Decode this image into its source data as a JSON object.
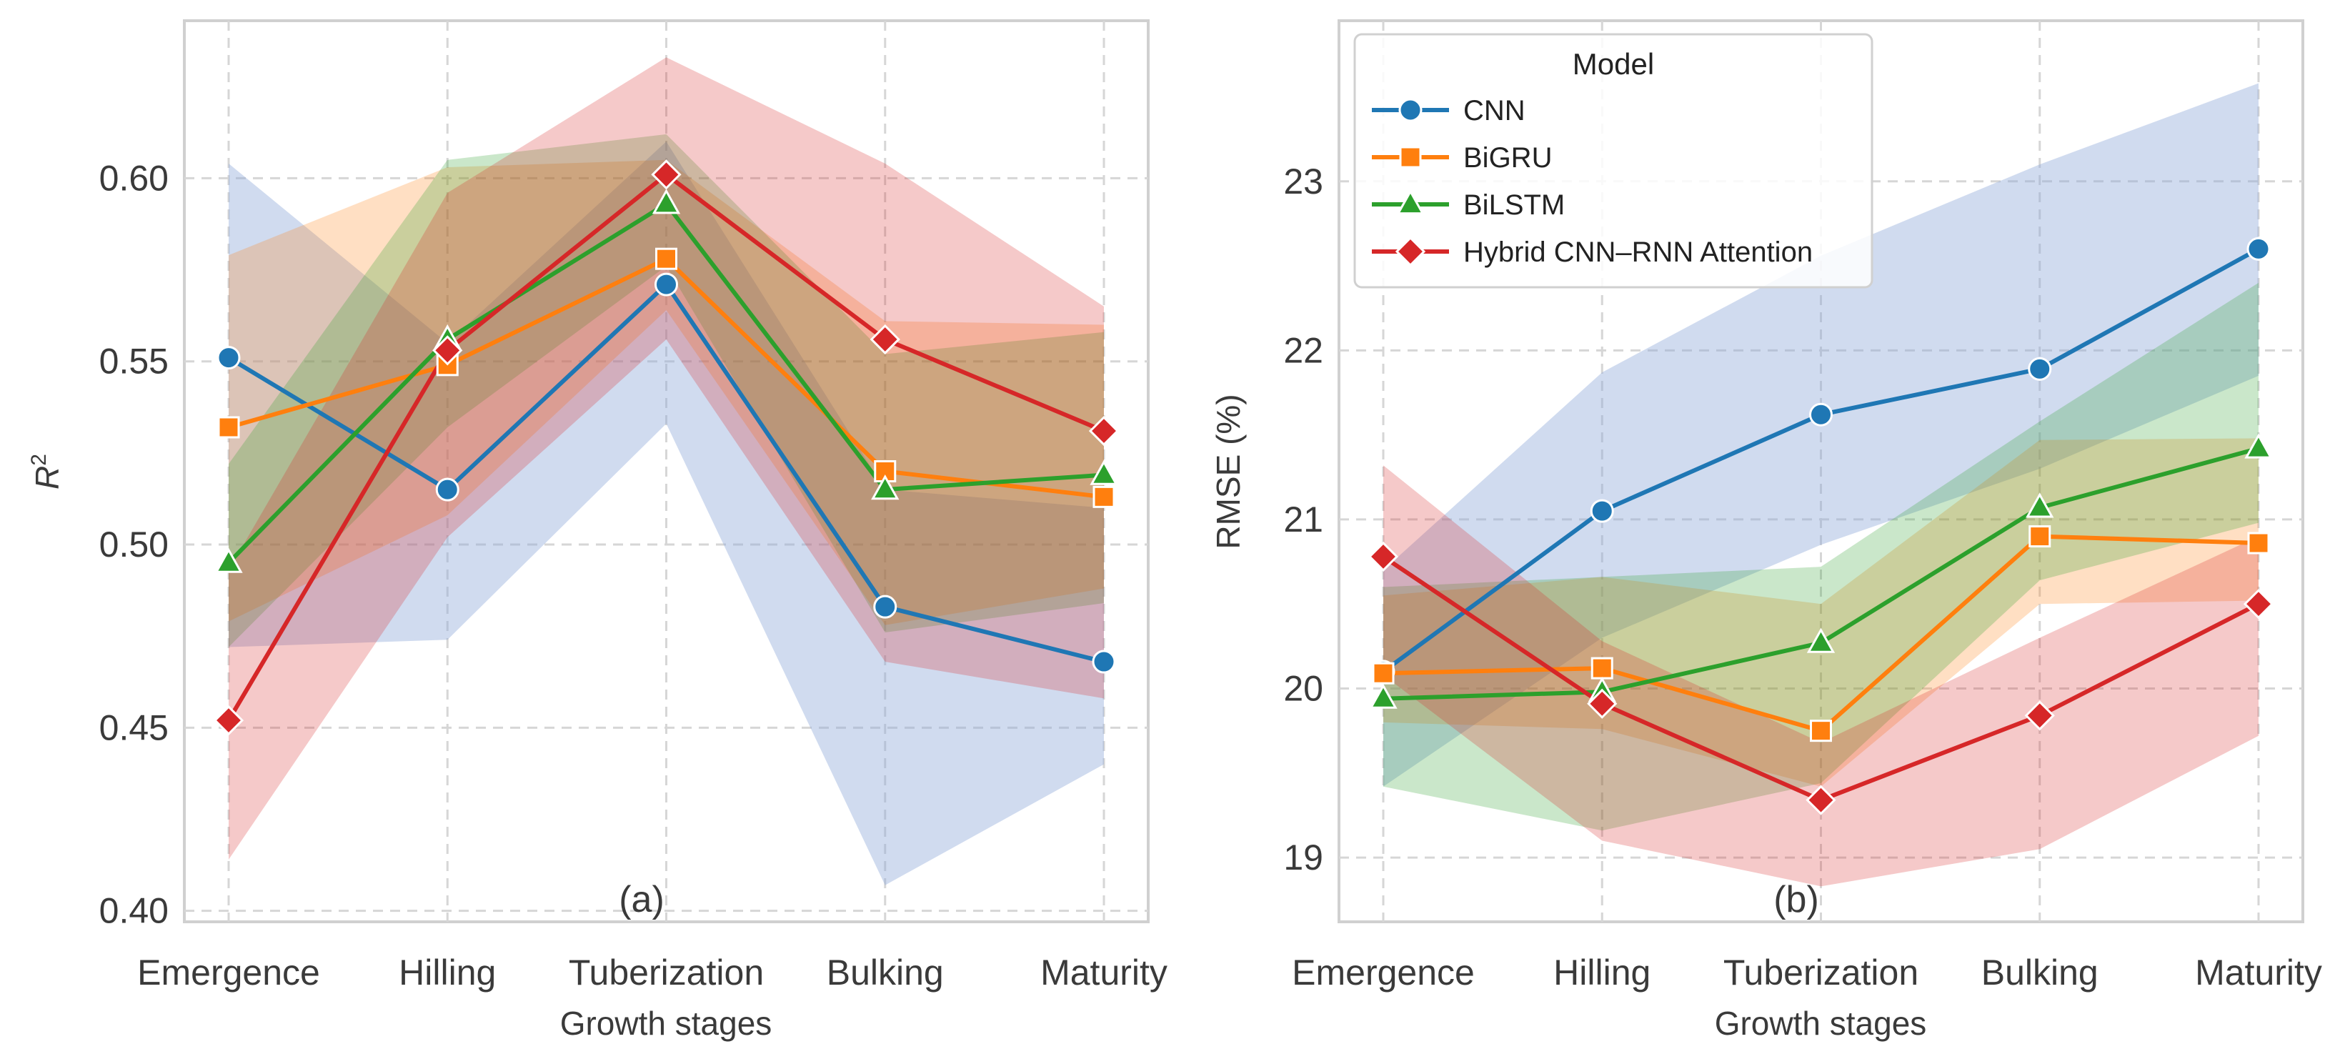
{
  "figure": {
    "legend_title": "Model"
  },
  "series_meta": [
    {
      "name": "CNN",
      "color": "#1f77b4",
      "marker": "circle"
    },
    {
      "name": "BiGRU",
      "color": "#ff7f0e",
      "marker": "square"
    },
    {
      "name": "BiLSTM",
      "color": "#2ca02c",
      "marker": "triangle"
    },
    {
      "name": "Hybrid CNN–RNN Attention",
      "color": "#d62728",
      "marker": "diamond"
    }
  ],
  "chart_data": [
    {
      "type": "line",
      "panel": "(a)",
      "title": "",
      "xlabel": "Growth stages",
      "ylabel": "R²",
      "ylabel_base": "R",
      "ylabel_sup": "2",
      "categories": [
        "Emergence",
        "Hilling",
        "Tuberization",
        "Bulking",
        "Maturity"
      ],
      "ylim": [
        0.397,
        0.643
      ],
      "yticks": [
        0.4,
        0.45,
        0.5,
        0.55,
        0.6
      ],
      "ytick_labels": [
        "0.40",
        "0.45",
        "0.50",
        "0.55",
        "0.60"
      ],
      "grid": true,
      "legend": false,
      "series": [
        {
          "name": "CNN",
          "values": [
            0.551,
            0.515,
            0.571,
            0.483,
            0.468
          ],
          "band_low": [
            0.472,
            0.474,
            0.533,
            0.407,
            0.44
          ],
          "band_high": [
            0.604,
            0.555,
            0.61,
            0.515,
            0.51
          ]
        },
        {
          "name": "BiGRU",
          "values": [
            0.532,
            0.549,
            0.578,
            0.52,
            0.513
          ],
          "band_low": [
            0.479,
            0.508,
            0.564,
            0.478,
            0.488
          ],
          "band_high": [
            0.579,
            0.603,
            0.605,
            0.561,
            0.56
          ]
        },
        {
          "name": "BiLSTM",
          "values": [
            0.495,
            0.556,
            0.593,
            0.515,
            0.519
          ],
          "band_low": [
            0.472,
            0.532,
            0.576,
            0.476,
            0.484
          ],
          "band_high": [
            0.522,
            0.605,
            0.612,
            0.552,
            0.558
          ]
        },
        {
          "name": "Hybrid CNN–RNN Attention",
          "values": [
            0.452,
            0.553,
            0.601,
            0.556,
            0.531
          ],
          "band_low": [
            0.414,
            0.502,
            0.556,
            0.468,
            0.458
          ],
          "band_high": [
            0.493,
            0.596,
            0.633,
            0.604,
            0.565
          ]
        }
      ]
    },
    {
      "type": "line",
      "panel": "(b)",
      "title": "",
      "xlabel": "Growth stages",
      "ylabel": "RMSE (%)",
      "categories": [
        "Emergence",
        "Hilling",
        "Tuberization",
        "Bulking",
        "Maturity"
      ],
      "ylim": [
        18.62,
        23.95
      ],
      "yticks": [
        19,
        20,
        21,
        22,
        23
      ],
      "ytick_labels": [
        "19",
        "20",
        "21",
        "22",
        "23"
      ],
      "grid": true,
      "legend": "top-left",
      "series": [
        {
          "name": "CNN",
          "values": [
            20.1,
            21.05,
            21.62,
            21.89,
            22.6
          ],
          "band_low": [
            19.42,
            20.3,
            20.85,
            21.3,
            21.85
          ],
          "band_high": [
            20.7,
            21.87,
            22.56,
            23.1,
            23.58
          ]
        },
        {
          "name": "BiGRU",
          "values": [
            20.09,
            20.12,
            19.75,
            20.9,
            20.86
          ],
          "band_low": [
            19.8,
            19.76,
            19.42,
            20.5,
            20.52
          ],
          "band_high": [
            20.55,
            20.66,
            20.5,
            21.47,
            21.48
          ]
        },
        {
          "name": "BiLSTM",
          "values": [
            19.94,
            19.98,
            20.27,
            21.07,
            21.42
          ],
          "band_low": [
            19.42,
            19.16,
            19.44,
            20.64,
            20.98
          ],
          "band_high": [
            20.6,
            20.66,
            20.72,
            21.58,
            22.4
          ]
        },
        {
          "name": "Hybrid CNN–RNN Attention",
          "values": [
            20.78,
            19.91,
            19.34,
            19.84,
            20.5
          ],
          "band_low": [
            20.08,
            19.1,
            18.83,
            19.05,
            19.72
          ],
          "band_high": [
            21.32,
            20.28,
            19.68,
            20.3,
            20.9
          ]
        }
      ]
    }
  ]
}
